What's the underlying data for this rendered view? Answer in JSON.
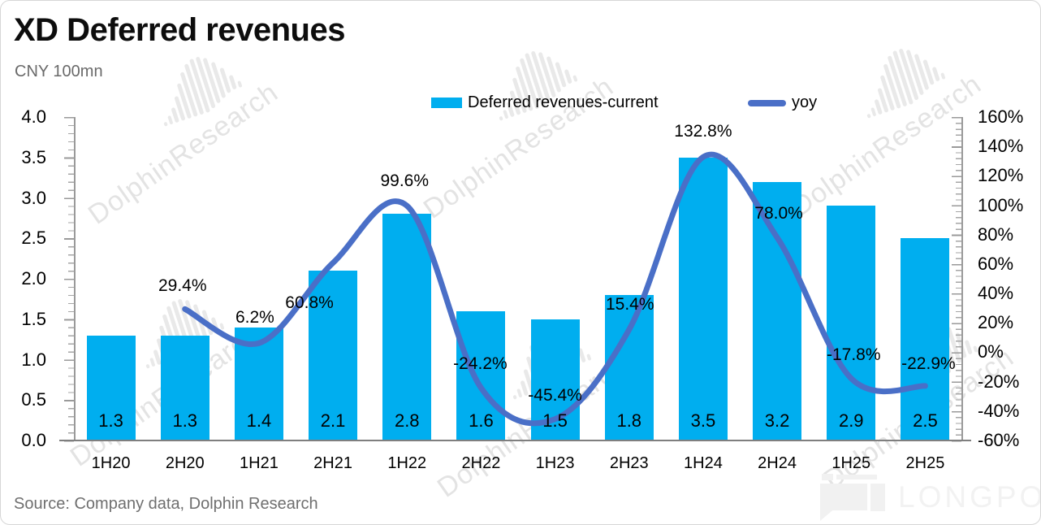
{
  "header": {
    "title": "XD Deferred revenues",
    "subtitle": "CNY 100mn"
  },
  "legend": [
    {
      "label": "Deferred revenues-current",
      "color": "#00AEEF"
    },
    {
      "label": "yoy",
      "color": "#4A6FC7"
    }
  ],
  "footer": {
    "source": "Source: Company data, Dolphin Research"
  },
  "watermark": {
    "text": "DolphinResearch"
  },
  "brand": {
    "text": "LONGPORT"
  },
  "chart_data": {
    "type": "bar+line",
    "title": "XD Deferred revenues",
    "unit": "CNY 100mn",
    "categories": [
      "1H20",
      "2H20",
      "1H21",
      "2H21",
      "1H22",
      "2H22",
      "1H23",
      "2H23",
      "1H24",
      "2H24",
      "1H25",
      "2H25"
    ],
    "series": [
      {
        "name": "Deferred revenues-current",
        "type": "bar",
        "axis": "left",
        "color": "#00AEEF",
        "values": [
          1.3,
          1.3,
          1.4,
          2.1,
          2.8,
          1.6,
          1.5,
          1.8,
          3.5,
          3.2,
          2.9,
          2.5
        ],
        "labels": [
          "1.3",
          "1.3",
          "1.4",
          "2.1",
          "2.8",
          "1.6",
          "1.5",
          "1.8",
          "3.5",
          "3.2",
          "2.9",
          "2.5"
        ]
      },
      {
        "name": "yoy",
        "type": "line",
        "axis": "right",
        "color": "#4A6FC7",
        "values": [
          null,
          29.4,
          6.2,
          60.8,
          99.6,
          -24.2,
          -45.4,
          15.4,
          132.8,
          78.0,
          -17.8,
          -22.9
        ],
        "labels": [
          null,
          "29.4%",
          "6.2%",
          "60.8%",
          "99.6%",
          "-24.2%",
          "-45.4%",
          "15.4%",
          "132.8%",
          "78.0%",
          "-17.8%",
          "-22.9%"
        ]
      }
    ],
    "left_axis": {
      "min": 0,
      "max": 4,
      "ticks": [
        "4.0",
        "3.5",
        "3.0",
        "2.5",
        "2.0",
        "1.5",
        "1.0",
        "0.5",
        "0.0"
      ]
    },
    "right_axis": {
      "min": -60,
      "max": 160,
      "ticks": [
        "160%",
        "140%",
        "120%",
        "100%",
        "80%",
        "60%",
        "40%",
        "20%",
        "0%",
        "-20%",
        "-40%",
        "-60%"
      ]
    },
    "grid": false,
    "legend_position": "top"
  }
}
